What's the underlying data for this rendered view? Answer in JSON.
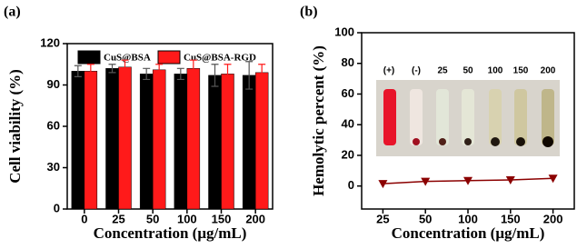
{
  "chart_data": [
    {
      "type": "bar",
      "panel_label": "(a)",
      "x_label": "Concentration (μg/mL)",
      "y_label": "Cell viability (%)",
      "categories": [
        "0",
        "25",
        "50",
        "100",
        "150",
        "200"
      ],
      "series": [
        {
          "name": "CuS@BSA",
          "color": "#000000",
          "values": [
            100,
            102,
            98,
            98,
            97,
            97
          ],
          "errors": [
            4,
            3,
            4,
            4,
            8,
            10
          ]
        },
        {
          "name": "CuS@BSA-RGD",
          "color": "#ff1a1a",
          "values": [
            100,
            103,
            101,
            102,
            98,
            99
          ],
          "errors": [
            5,
            5,
            4,
            6,
            7,
            6
          ]
        }
      ],
      "ylim": [
        0,
        120
      ],
      "yticks": [
        0,
        30,
        60,
        90,
        120
      ]
    },
    {
      "type": "line",
      "panel_label": "(b)",
      "x_label": "Concentration (μg/mL)",
      "y_label": "Hemolytic percent (%)",
      "categories": [
        "25",
        "50",
        "100",
        "150",
        "200"
      ],
      "series": [
        {
          "color": "#8b0000",
          "values": [
            1.5,
            3,
            3.5,
            4,
            5
          ]
        }
      ],
      "inset_labels": [
        "(+)",
        "(-)",
        "25",
        "50",
        "100",
        "150",
        "200"
      ],
      "ylim": [
        -15,
        100
      ],
      "yticks": [
        0,
        20,
        40,
        60,
        80,
        100
      ]
    }
  ]
}
